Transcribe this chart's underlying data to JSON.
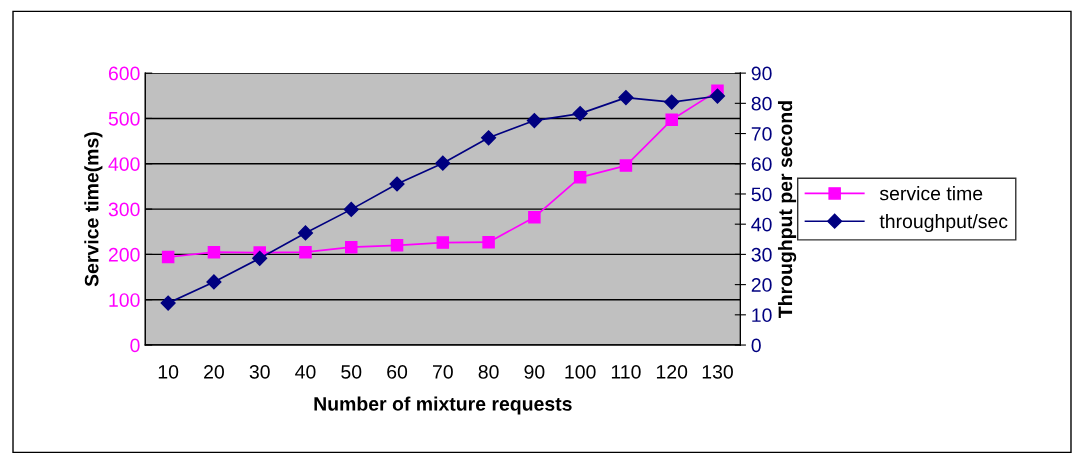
{
  "chart_data": {
    "type": "line",
    "xlabel": "Number of mixture requests",
    "ylabel": "Service time(ms)",
    "y2label": "Throughput per second",
    "categories": [
      "10",
      "20",
      "30",
      "40",
      "50",
      "60",
      "70",
      "80",
      "90",
      "100",
      "110",
      "120",
      "130"
    ],
    "series": [
      {
        "name": "service time",
        "color": "#ff00ff",
        "marker": "square",
        "values": [
          194,
          205,
          204,
          205,
          216,
          220,
          226,
          227,
          282,
          370,
          396,
          497,
          561
        ]
      },
      {
        "name": "throughput/sec",
        "color": "#000080",
        "marker": "diamond",
        "axis": "y2",
        "values": [
          13.9,
          20.9,
          28.7,
          37.1,
          44.9,
          53.3,
          60.2,
          68.6,
          74.3,
          76.6,
          81.9,
          80.4,
          82.4
        ]
      }
    ],
    "ylim": [
      0,
      600
    ],
    "yticks": [
      0,
      100,
      200,
      300,
      400,
      500,
      600
    ],
    "y2lim": [
      0,
      90
    ],
    "y2ticks": [
      0,
      10,
      20,
      30,
      40,
      50,
      60,
      70,
      80,
      90
    ],
    "grid": "y",
    "legend": "right",
    "line_style": "solid"
  }
}
